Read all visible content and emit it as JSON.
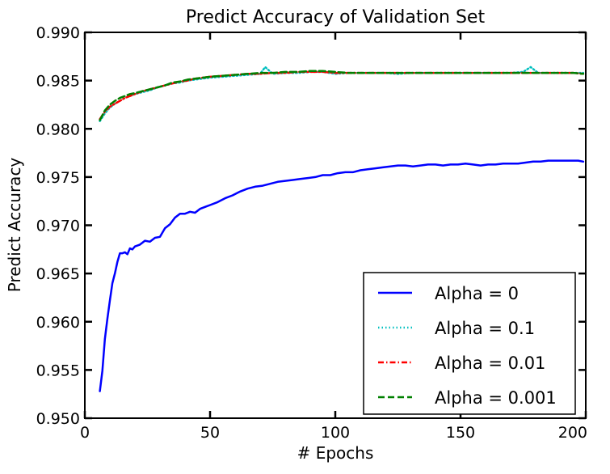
{
  "chart_data": {
    "type": "line",
    "title": "Predict Accuracy of Validation Set",
    "xlabel": "# Epochs",
    "ylabel": "Predict Accuracy",
    "xlim": [
      0,
      200
    ],
    "ylim": [
      0.95,
      0.99
    ],
    "xticks": [
      "0",
      "50",
      "100",
      "150",
      "200"
    ],
    "yticks": [
      "0.950",
      "0.955",
      "0.960",
      "0.965",
      "0.970",
      "0.975",
      "0.980",
      "0.985",
      "0.990"
    ],
    "grid": false,
    "legend_position": "lower-right",
    "series": [
      {
        "name": "Alpha = 0",
        "color": "#0000ff",
        "style": "solid",
        "points": [
          [
            6,
            0.9528
          ],
          [
            7,
            0.9549
          ],
          [
            8,
            0.9582
          ],
          [
            9,
            0.9603
          ],
          [
            10,
            0.9622
          ],
          [
            11,
            0.964
          ],
          [
            12,
            0.965
          ],
          [
            13,
            0.9662
          ],
          [
            14,
            0.9671
          ],
          [
            15,
            0.9671
          ],
          [
            16,
            0.9672
          ],
          [
            17,
            0.967
          ],
          [
            18,
            0.9676
          ],
          [
            19,
            0.9675
          ],
          [
            20,
            0.9678
          ],
          [
            22,
            0.968
          ],
          [
            24,
            0.9684
          ],
          [
            26,
            0.9683
          ],
          [
            28,
            0.9687
          ],
          [
            30,
            0.9688
          ],
          [
            32,
            0.9697
          ],
          [
            34,
            0.9701
          ],
          [
            36,
            0.9708
          ],
          [
            38,
            0.9712
          ],
          [
            40,
            0.9712
          ],
          [
            42,
            0.9714
          ],
          [
            44,
            0.9713
          ],
          [
            46,
            0.9717
          ],
          [
            48,
            0.9719
          ],
          [
            50,
            0.9721
          ],
          [
            53,
            0.9724
          ],
          [
            56,
            0.9728
          ],
          [
            59,
            0.9731
          ],
          [
            62,
            0.9735
          ],
          [
            65,
            0.9738
          ],
          [
            68,
            0.974
          ],
          [
            71,
            0.9741
          ],
          [
            74,
            0.9743
          ],
          [
            77,
            0.9745
          ],
          [
            80,
            0.9746
          ],
          [
            83,
            0.9747
          ],
          [
            86,
            0.9748
          ],
          [
            89,
            0.9749
          ],
          [
            92,
            0.975
          ],
          [
            95,
            0.9752
          ],
          [
            98,
            0.9752
          ],
          [
            101,
            0.9754
          ],
          [
            104,
            0.9755
          ],
          [
            107,
            0.9755
          ],
          [
            110,
            0.9757
          ],
          [
            113,
            0.9758
          ],
          [
            116,
            0.9759
          ],
          [
            119,
            0.976
          ],
          [
            122,
            0.9761
          ],
          [
            125,
            0.9762
          ],
          [
            128,
            0.9762
          ],
          [
            131,
            0.9761
          ],
          [
            134,
            0.9762
          ],
          [
            137,
            0.9763
          ],
          [
            140,
            0.9763
          ],
          [
            143,
            0.9762
          ],
          [
            146,
            0.9763
          ],
          [
            149,
            0.9763
          ],
          [
            152,
            0.9764
          ],
          [
            155,
            0.9763
          ],
          [
            158,
            0.9762
          ],
          [
            161,
            0.9763
          ],
          [
            164,
            0.9763
          ],
          [
            167,
            0.9764
          ],
          [
            170,
            0.9764
          ],
          [
            173,
            0.9764
          ],
          [
            176,
            0.9765
          ],
          [
            179,
            0.9766
          ],
          [
            182,
            0.9766
          ],
          [
            185,
            0.9767
          ],
          [
            188,
            0.9767
          ],
          [
            191,
            0.9767
          ],
          [
            194,
            0.9767
          ],
          [
            197,
            0.9767
          ],
          [
            199,
            0.9766
          ]
        ]
      },
      {
        "name": "Alpha = 0.1",
        "color": "#00bfbf",
        "style": "dotted",
        "points": [
          [
            6,
            0.9808
          ],
          [
            8,
            0.9816
          ],
          [
            10,
            0.9822
          ],
          [
            12,
            0.9826
          ],
          [
            14,
            0.9829
          ],
          [
            16,
            0.9832
          ],
          [
            18,
            0.9834
          ],
          [
            20,
            0.9836
          ],
          [
            23,
            0.9838
          ],
          [
            26,
            0.984
          ],
          [
            29,
            0.9843
          ],
          [
            32,
            0.9845
          ],
          [
            35,
            0.9847
          ],
          [
            38,
            0.9848
          ],
          [
            41,
            0.985
          ],
          [
            44,
            0.9851
          ],
          [
            47,
            0.9852
          ],
          [
            50,
            0.9853
          ],
          [
            55,
            0.9854
          ],
          [
            60,
            0.9855
          ],
          [
            65,
            0.9856
          ],
          [
            70,
            0.9857
          ],
          [
            72,
            0.9864
          ],
          [
            75,
            0.9857
          ],
          [
            80,
            0.9858
          ],
          [
            85,
            0.9858
          ],
          [
            90,
            0.9859
          ],
          [
            95,
            0.9859
          ],
          [
            100,
            0.9857
          ],
          [
            105,
            0.9858
          ],
          [
            110,
            0.9858
          ],
          [
            115,
            0.9858
          ],
          [
            120,
            0.9858
          ],
          [
            125,
            0.9857
          ],
          [
            130,
            0.9858
          ],
          [
            135,
            0.9858
          ],
          [
            140,
            0.9858
          ],
          [
            145,
            0.9858
          ],
          [
            150,
            0.9858
          ],
          [
            155,
            0.9858
          ],
          [
            160,
            0.9858
          ],
          [
            165,
            0.9858
          ],
          [
            170,
            0.9858
          ],
          [
            175,
            0.9859
          ],
          [
            178,
            0.9864
          ],
          [
            181,
            0.9858
          ],
          [
            185,
            0.9858
          ],
          [
            190,
            0.9858
          ],
          [
            195,
            0.9858
          ],
          [
            199,
            0.9858
          ]
        ]
      },
      {
        "name": "Alpha = 0.01",
        "color": "#ff0000",
        "style": "dashdot",
        "points": [
          [
            6,
            0.981
          ],
          [
            8,
            0.9818
          ],
          [
            10,
            0.9823
          ],
          [
            12,
            0.9826
          ],
          [
            14,
            0.9829
          ],
          [
            16,
            0.9832
          ],
          [
            18,
            0.9834
          ],
          [
            20,
            0.9836
          ],
          [
            23,
            0.9839
          ],
          [
            26,
            0.9841
          ],
          [
            29,
            0.9843
          ],
          [
            32,
            0.9845
          ],
          [
            35,
            0.9847
          ],
          [
            38,
            0.9849
          ],
          [
            41,
            0.985
          ],
          [
            44,
            0.9852
          ],
          [
            47,
            0.9853
          ],
          [
            50,
            0.9854
          ],
          [
            55,
            0.9855
          ],
          [
            60,
            0.9856
          ],
          [
            65,
            0.9857
          ],
          [
            70,
            0.9857
          ],
          [
            75,
            0.9858
          ],
          [
            80,
            0.9858
          ],
          [
            85,
            0.9859
          ],
          [
            90,
            0.9859
          ],
          [
            95,
            0.9859
          ],
          [
            100,
            0.9858
          ],
          [
            105,
            0.9858
          ],
          [
            110,
            0.9858
          ],
          [
            115,
            0.9858
          ],
          [
            120,
            0.9858
          ],
          [
            125,
            0.9858
          ],
          [
            130,
            0.9858
          ],
          [
            135,
            0.9858
          ],
          [
            140,
            0.9858
          ],
          [
            145,
            0.9858
          ],
          [
            150,
            0.9858
          ],
          [
            155,
            0.9858
          ],
          [
            160,
            0.9858
          ],
          [
            165,
            0.9858
          ],
          [
            170,
            0.9858
          ],
          [
            175,
            0.9858
          ],
          [
            180,
            0.9858
          ],
          [
            185,
            0.9858
          ],
          [
            190,
            0.9858
          ],
          [
            195,
            0.9858
          ],
          [
            199,
            0.9857
          ]
        ]
      },
      {
        "name": "Alpha = 0.001",
        "color": "#008000",
        "style": "dashed",
        "points": [
          [
            6,
            0.9809
          ],
          [
            8,
            0.9819
          ],
          [
            10,
            0.9825
          ],
          [
            12,
            0.9829
          ],
          [
            14,
            0.9832
          ],
          [
            16,
            0.9834
          ],
          [
            18,
            0.9836
          ],
          [
            20,
            0.9837
          ],
          [
            23,
            0.9839
          ],
          [
            26,
            0.9841
          ],
          [
            29,
            0.9843
          ],
          [
            32,
            0.9845
          ],
          [
            35,
            0.9848
          ],
          [
            38,
            0.9849
          ],
          [
            41,
            0.9851
          ],
          [
            44,
            0.9852
          ],
          [
            47,
            0.9853
          ],
          [
            50,
            0.9854
          ],
          [
            55,
            0.9855
          ],
          [
            60,
            0.9856
          ],
          [
            65,
            0.9857
          ],
          [
            70,
            0.9858
          ],
          [
            75,
            0.9858
          ],
          [
            80,
            0.9859
          ],
          [
            85,
            0.9859
          ],
          [
            90,
            0.986
          ],
          [
            95,
            0.986
          ],
          [
            100,
            0.9859
          ],
          [
            105,
            0.9858
          ],
          [
            110,
            0.9858
          ],
          [
            115,
            0.9858
          ],
          [
            120,
            0.9858
          ],
          [
            125,
            0.9858
          ],
          [
            130,
            0.9858
          ],
          [
            135,
            0.9858
          ],
          [
            140,
            0.9858
          ],
          [
            145,
            0.9858
          ],
          [
            150,
            0.9858
          ],
          [
            155,
            0.9858
          ],
          [
            160,
            0.9858
          ],
          [
            165,
            0.9858
          ],
          [
            170,
            0.9858
          ],
          [
            175,
            0.9858
          ],
          [
            180,
            0.9858
          ],
          [
            185,
            0.9858
          ],
          [
            190,
            0.9858
          ],
          [
            195,
            0.9858
          ],
          [
            199,
            0.9857
          ]
        ]
      }
    ]
  }
}
